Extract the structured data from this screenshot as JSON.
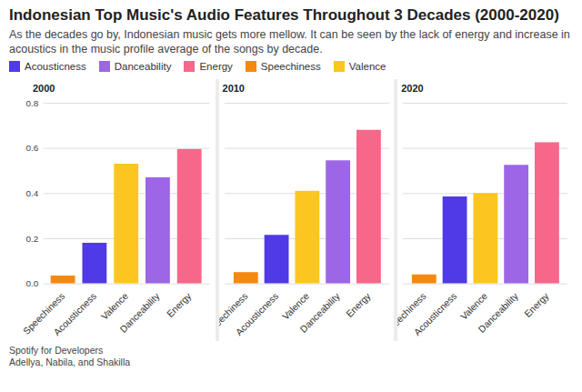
{
  "title": "Indonesian Top Music's Audio Features Throughout 3 Decades (2000-2020)",
  "subtitle": "As the decades go by, Indonesian music gets more mellow. It can be seen by the lack of energy and increase in acoustics in the music profile average of the songs by decade.",
  "caption": [
    "Spotify for Developers",
    "Adellya, Nabila, and Shakilla"
  ],
  "chart_data": [
    {
      "type": "bar",
      "title": "2000",
      "categories": [
        "Speechiness",
        "Acousticness",
        "Valence",
        "Danceability",
        "Energy"
      ],
      "values": [
        0.035,
        0.18,
        0.53,
        0.47,
        0.595
      ],
      "colors": [
        "#f5890f",
        "#5039e6",
        "#fbc61f",
        "#9d66e6",
        "#f7678a"
      ],
      "ylim": [
        0,
        0.8
      ],
      "yticks": [
        0,
        0.2,
        0.4,
        0.6,
        0.8
      ],
      "grid": true,
      "legend": "top-left"
    },
    {
      "type": "bar",
      "title": "2010",
      "categories": [
        "Speechiness",
        "Acousticness",
        "Valence",
        "Danceability",
        "Energy"
      ],
      "values": [
        0.05,
        0.215,
        0.41,
        0.545,
        0.68
      ],
      "colors": [
        "#f5890f",
        "#5039e6",
        "#fbc61f",
        "#9d66e6",
        "#f7678a"
      ],
      "ylim": [
        0,
        0.8
      ],
      "yticks": [
        0,
        0.2,
        0.4,
        0.6,
        0.8
      ],
      "grid": true,
      "legend": "top-left",
      "tick_labels": "x"
    },
    {
      "type": "bar",
      "title": "2020",
      "categories": [
        "Speechiness",
        "Acousticness",
        "Valence",
        "Danceability",
        "Energy"
      ],
      "values": [
        0.04,
        0.385,
        0.4,
        0.525,
        0.625
      ],
      "colors": [
        "#f5890f",
        "#5039e6",
        "#fbc61f",
        "#9d66e6",
        "#f7678a"
      ],
      "ylim": [
        0,
        0.8
      ],
      "yticks": [
        0,
        0.2,
        0.4,
        0.6,
        0.8
      ],
      "grid": true,
      "legend": "top-left",
      "tick_labels": "x"
    }
  ]
}
